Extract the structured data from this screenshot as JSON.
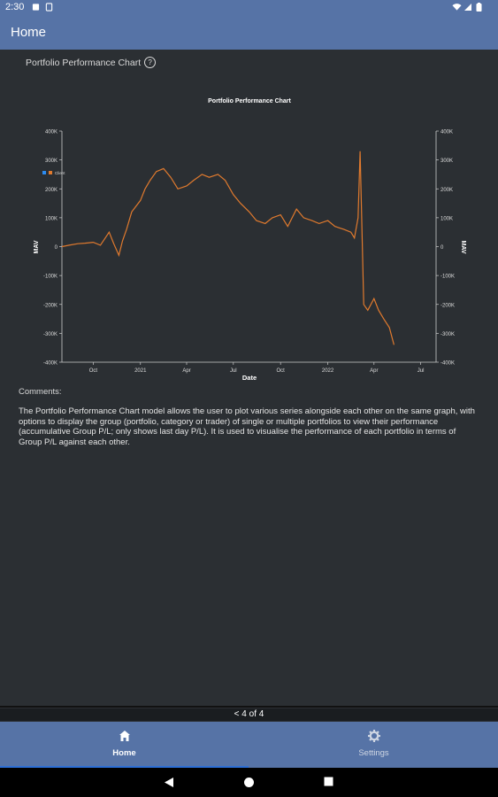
{
  "status_bar": {
    "time": "2:30"
  },
  "app_bar": {
    "title": "Home"
  },
  "section": {
    "title": "Portfolio Performance Chart",
    "help_glyph": "?"
  },
  "chart_data": {
    "type": "line",
    "title": "Portfolio Performance Chart",
    "xlabel": "Date",
    "ylabel_left": "MAV",
    "ylabel_right": "MAV",
    "x_tick_labels": [
      "Oct",
      "2021",
      "Apr",
      "Jul",
      "Oct",
      "2022",
      "Apr",
      "Jul"
    ],
    "y_tick_labels": [
      "400K",
      "300K",
      "200K",
      "100K",
      "0",
      "-100K",
      "-200K",
      "-300K",
      "-400K"
    ],
    "y_tick_values": [
      400000,
      300000,
      200000,
      100000,
      0,
      -100000,
      -200000,
      -300000,
      -400000
    ],
    "x_range": [
      "2020-08-01",
      "2022-07-31"
    ],
    "ylim": [
      -400000,
      400000
    ],
    "legend": {
      "placement": "top-left",
      "entries": [
        "Client"
      ]
    },
    "grid": false,
    "series": [
      {
        "name": "Client",
        "color": "#e07a2e",
        "x": [
          "2020-08-01",
          "2020-08-15",
          "2020-09-01",
          "2020-09-15",
          "2020-10-01",
          "2020-10-15",
          "2020-11-01",
          "2020-11-10",
          "2020-11-20",
          "2020-11-27",
          "2020-12-05",
          "2020-12-15",
          "2021-01-01",
          "2021-01-10",
          "2021-01-20",
          "2021-02-01",
          "2021-02-15",
          "2021-03-01",
          "2021-03-15",
          "2021-04-01",
          "2021-04-15",
          "2021-05-01",
          "2021-05-15",
          "2021-06-01",
          "2021-06-15",
          "2021-07-01",
          "2021-07-15",
          "2021-08-01",
          "2021-08-15",
          "2021-09-01",
          "2021-09-15",
          "2021-10-01",
          "2021-10-15",
          "2021-11-01",
          "2021-11-15",
          "2021-12-01",
          "2021-12-15",
          "2022-01-01",
          "2022-01-15",
          "2022-02-01",
          "2022-02-15",
          "2022-02-22",
          "2022-03-01",
          "2022-03-05",
          "2022-03-08",
          "2022-03-12",
          "2022-03-20",
          "2022-04-01",
          "2022-04-10",
          "2022-04-20",
          "2022-05-01",
          "2022-05-10"
        ],
        "values": [
          0,
          5000,
          10000,
          12000,
          15000,
          5000,
          50000,
          10000,
          -30000,
          20000,
          60000,
          120000,
          160000,
          200000,
          230000,
          260000,
          270000,
          240000,
          200000,
          210000,
          230000,
          250000,
          240000,
          250000,
          230000,
          180000,
          150000,
          120000,
          90000,
          80000,
          100000,
          110000,
          70000,
          130000,
          100000,
          90000,
          80000,
          90000,
          70000,
          60000,
          50000,
          30000,
          100000,
          330000,
          100000,
          -200000,
          -220000,
          -180000,
          -220000,
          -250000,
          -280000,
          -340000
        ]
      }
    ]
  },
  "comments": {
    "label": "Comments:",
    "text": "The Portfolio Performance Chart model allows the user to plot various series alongside each other on the same graph, with options to display the group (portfolio, category or trader) of single or multiple portfolios to view their performance (accumulative Group P/L; only shows last day P/L). It is used to visualise the performance of each portfolio in terms of Group P/L against each other."
  },
  "pager": {
    "text": "< 4 of 4"
  },
  "bottom_nav": {
    "items": [
      {
        "label": "Home",
        "icon": "home-icon",
        "active": true
      },
      {
        "label": "Settings",
        "icon": "gear-icon",
        "active": false
      }
    ]
  },
  "colors": {
    "accent": "#5673a6",
    "background": "#2b2f33",
    "series": "#e07a2e",
    "active_indicator": "#2d6fd6"
  }
}
